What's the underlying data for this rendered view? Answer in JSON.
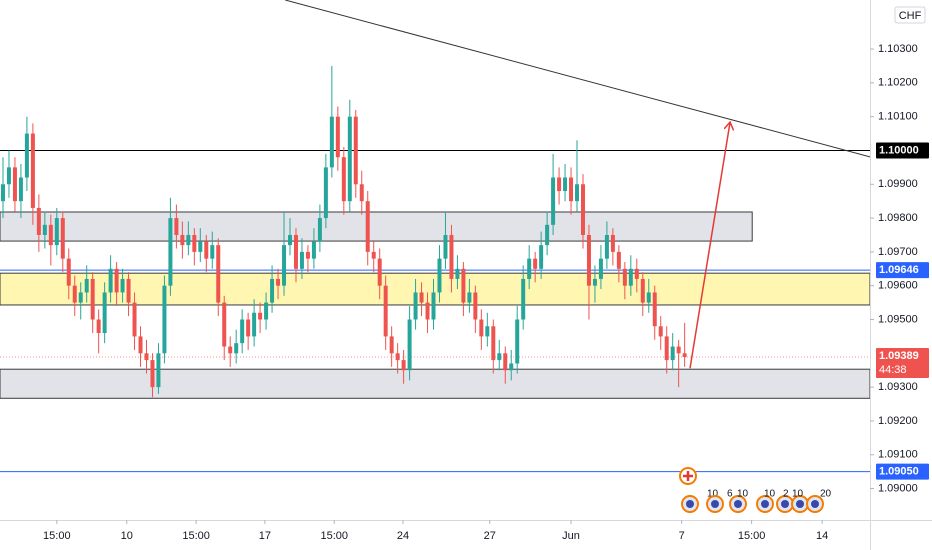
{
  "chart_data": {
    "type": "candlestick",
    "currency": "CHF",
    "colors": {
      "up": "#26a69a",
      "down": "#ef5350"
    },
    "xlim": [
      -0.5,
      145
    ],
    "ylim": [
      1.08907,
      1.10445
    ],
    "yticks": [
      {
        "value": 1.103,
        "label": "1.10300"
      },
      {
        "value": 1.102,
        "label": "1.10200"
      },
      {
        "value": 1.101,
        "label": "1.10100"
      },
      {
        "value": 1.099,
        "label": "1.09900"
      },
      {
        "value": 1.098,
        "label": "1.09800"
      },
      {
        "value": 1.097,
        "label": "1.09700"
      },
      {
        "value": 1.096,
        "label": "1.09600"
      },
      {
        "value": 1.095,
        "label": "1.09500"
      },
      {
        "value": 1.093,
        "label": "1.09300"
      },
      {
        "value": 1.092,
        "label": "1.09200"
      },
      {
        "value": 1.091,
        "label": "1.09100"
      },
      {
        "value": 1.09,
        "label": "1.09000"
      }
    ],
    "xticks": [
      {
        "value": 9,
        "label": "15:00"
      },
      {
        "value": 20.7,
        "label": "10"
      },
      {
        "value": 32.3,
        "label": "15:00"
      },
      {
        "value": 43.8,
        "label": "17"
      },
      {
        "value": 55.4,
        "label": "15:00"
      },
      {
        "value": 66.9,
        "label": "24"
      },
      {
        "value": 81.4,
        "label": "27"
      },
      {
        "value": 95,
        "label": "Jun"
      },
      {
        "value": 113.5,
        "label": "7"
      },
      {
        "value": 125.2,
        "label": "15:00"
      },
      {
        "value": 137,
        "label": "14"
      }
    ],
    "ohlc": [
      [
        1.0985,
        1.0998,
        1.098,
        1.099
      ],
      [
        1.099,
        1.1,
        1.0986,
        1.0995
      ],
      [
        1.0995,
        1.0998,
        1.0982,
        1.0985
      ],
      [
        1.0985,
        1.0996,
        1.098,
        1.0992
      ],
      [
        1.0992,
        1.101,
        1.0988,
        1.1005
      ],
      [
        1.1005,
        1.1008,
        1.0978,
        1.0983
      ],
      [
        1.0983,
        1.0987,
        1.097,
        1.0975
      ],
      [
        1.0975,
        1.0982,
        1.0971,
        1.0978
      ],
      [
        1.0978,
        1.0981,
        1.0966,
        1.0972
      ],
      [
        1.0972,
        1.0983,
        1.0969,
        1.098
      ],
      [
        1.098,
        1.0982,
        1.0964,
        1.0968
      ],
      [
        1.0968,
        1.0971,
        1.0956,
        1.096
      ],
      [
        1.096,
        1.0963,
        1.0951,
        1.0955
      ],
      [
        1.0955,
        1.0961,
        1.095,
        1.0958
      ],
      [
        1.0958,
        1.0966,
        1.0955,
        1.0962
      ],
      [
        1.0962,
        1.0964,
        1.0946,
        1.095
      ],
      [
        1.095,
        1.0953,
        1.094,
        1.0946
      ],
      [
        1.0946,
        1.0961,
        1.0943,
        1.0958
      ],
      [
        1.0958,
        1.0969,
        1.0955,
        1.0965
      ],
      [
        1.0965,
        1.0967,
        1.0954,
        1.0958
      ],
      [
        1.0958,
        1.0965,
        1.0955,
        1.0962
      ],
      [
        1.0962,
        1.0964,
        1.0951,
        1.0955
      ],
      [
        1.0955,
        1.0958,
        1.0941,
        1.0945
      ],
      [
        1.0945,
        1.0948,
        1.0936,
        1.094
      ],
      [
        1.094,
        1.0944,
        1.0934,
        1.0938
      ],
      [
        1.0938,
        1.094,
        1.0927,
        1.093
      ],
      [
        1.093,
        1.0943,
        1.0928,
        1.094
      ],
      [
        1.094,
        1.0963,
        1.0937,
        1.096
      ],
      [
        1.096,
        1.0986,
        1.0957,
        1.098
      ],
      [
        1.098,
        1.0984,
        1.0971,
        1.0975
      ],
      [
        1.0975,
        1.0979,
        1.0968,
        1.0972
      ],
      [
        1.0972,
        1.0979,
        1.0969,
        1.0975
      ],
      [
        1.0975,
        1.0977,
        1.0966,
        1.097
      ],
      [
        1.097,
        1.0977,
        1.0967,
        1.0973
      ],
      [
        1.0973,
        1.0975,
        1.0964,
        1.0968
      ],
      [
        1.0968,
        1.0976,
        1.0965,
        1.0972
      ],
      [
        1.0972,
        1.0974,
        1.0951,
        1.0955
      ],
      [
        1.0955,
        1.0957,
        1.0938,
        1.0942
      ],
      [
        1.0942,
        1.0945,
        1.0936,
        1.094
      ],
      [
        1.094,
        1.0947,
        1.0937,
        1.0943
      ],
      [
        1.0943,
        1.0953,
        1.094,
        1.095
      ],
      [
        1.095,
        1.0952,
        1.0941,
        1.0945
      ],
      [
        1.0945,
        1.0956,
        1.0942,
        1.0952
      ],
      [
        1.0952,
        1.0955,
        1.0946,
        1.095
      ],
      [
        1.095,
        1.0958,
        1.0947,
        1.0955
      ],
      [
        1.0955,
        1.0966,
        1.0952,
        1.0962
      ],
      [
        1.0962,
        1.0965,
        1.0956,
        1.096
      ],
      [
        1.096,
        1.0982,
        1.0957,
        1.0972
      ],
      [
        1.0972,
        1.098,
        1.0969,
        1.0975
      ],
      [
        1.0975,
        1.0977,
        1.0961,
        1.0965
      ],
      [
        1.0965,
        1.0974,
        1.0962,
        1.097
      ],
      [
        1.097,
        1.0972,
        1.0964,
        1.0968
      ],
      [
        1.0968,
        1.0977,
        1.0965,
        1.0973
      ],
      [
        1.0973,
        1.0984,
        1.097,
        1.098
      ],
      [
        1.098,
        1.0999,
        1.0977,
        1.0995
      ],
      [
        1.0995,
        1.1025,
        1.0992,
        1.101
      ],
      [
        1.101,
        1.1013,
        1.0994,
        1.0998
      ],
      [
        1.0998,
        1.1001,
        1.0981,
        1.0985
      ],
      [
        1.0985,
        1.1015,
        1.0982,
        1.101
      ],
      [
        1.101,
        1.1012,
        1.0986,
        1.099
      ],
      [
        1.099,
        1.0994,
        1.0981,
        1.0985
      ],
      [
        1.0985,
        1.0988,
        1.0966,
        1.097
      ],
      [
        1.097,
        1.0973,
        1.0964,
        1.0968
      ],
      [
        1.0968,
        1.0971,
        1.0956,
        1.096
      ],
      [
        1.096,
        1.0963,
        1.0941,
        1.0945
      ],
      [
        1.0945,
        1.0948,
        1.0936,
        1.094
      ],
      [
        1.094,
        1.0943,
        1.0934,
        1.0938
      ],
      [
        1.0938,
        1.0941,
        1.0931,
        1.0935
      ],
      [
        1.0935,
        1.0954,
        1.0932,
        1.095
      ],
      [
        1.095,
        1.0962,
        1.0947,
        1.0958
      ],
      [
        1.0958,
        1.0961,
        1.0951,
        1.0955
      ],
      [
        1.0955,
        1.0958,
        1.0946,
        1.095
      ],
      [
        1.095,
        1.0962,
        1.0947,
        1.0958
      ],
      [
        1.0958,
        1.0972,
        1.0955,
        1.0968
      ],
      [
        1.0968,
        1.0982,
        1.0965,
        1.0975
      ],
      [
        1.0975,
        1.0978,
        1.0958,
        1.0962
      ],
      [
        1.0962,
        1.0969,
        1.0959,
        1.0965
      ],
      [
        1.0965,
        1.0967,
        1.0951,
        1.0955
      ],
      [
        1.0955,
        1.0962,
        1.0952,
        1.0958
      ],
      [
        1.0958,
        1.096,
        1.0946,
        1.095
      ],
      [
        1.095,
        1.0953,
        1.0941,
        1.0945
      ],
      [
        1.0945,
        1.0952,
        1.0942,
        1.0948
      ],
      [
        1.0948,
        1.095,
        1.0934,
        1.0938
      ],
      [
        1.0938,
        1.0944,
        1.0935,
        1.094
      ],
      [
        1.094,
        1.0942,
        1.0931,
        1.0935
      ],
      [
        1.0935,
        1.0941,
        1.0932,
        1.0937
      ],
      [
        1.0937,
        1.0954,
        1.0934,
        1.095
      ],
      [
        1.095,
        1.0966,
        1.0947,
        1.0962
      ],
      [
        1.0962,
        1.0972,
        1.0959,
        1.0968
      ],
      [
        1.0968,
        1.097,
        1.0961,
        1.0965
      ],
      [
        1.0965,
        1.0976,
        1.0962,
        1.0972
      ],
      [
        1.0972,
        1.0982,
        1.0969,
        1.0978
      ],
      [
        1.0978,
        1.0999,
        1.0975,
        1.0992
      ],
      [
        1.0992,
        1.0995,
        1.0984,
        1.0988
      ],
      [
        1.0988,
        1.0996,
        1.0985,
        1.0992
      ],
      [
        1.0992,
        1.0995,
        1.0981,
        1.0985
      ],
      [
        1.0985,
        1.1003,
        1.0982,
        1.099
      ],
      [
        1.099,
        1.0993,
        1.0971,
        1.0975
      ],
      [
        1.0975,
        1.0978,
        1.095,
        1.096
      ],
      [
        1.096,
        1.0966,
        1.0955,
        1.0962
      ],
      [
        1.0962,
        1.0972,
        1.0959,
        1.0968
      ],
      [
        1.0968,
        1.0979,
        1.0965,
        1.0975
      ],
      [
        1.0975,
        1.0977,
        1.0966,
        1.097
      ],
      [
        1.097,
        1.0972,
        1.0961,
        1.0965
      ],
      [
        1.0965,
        1.0967,
        1.0956,
        1.096
      ],
      [
        1.096,
        1.0969,
        1.0957,
        1.0965
      ],
      [
        1.0965,
        1.0968,
        1.0958,
        1.0962
      ],
      [
        1.0962,
        1.0964,
        1.0951,
        1.0955
      ],
      [
        1.0955,
        1.0962,
        1.0952,
        1.0958
      ],
      [
        1.0958,
        1.096,
        1.0944,
        1.0948
      ],
      [
        1.0948,
        1.0951,
        1.0941,
        1.0945
      ],
      [
        1.0945,
        1.0948,
        1.0934,
        1.0938
      ],
      [
        1.0938,
        1.0946,
        1.0935,
        1.0942
      ],
      [
        1.0942,
        1.0944,
        1.093,
        1.094
      ],
      [
        1.094,
        1.0949,
        1.0936,
        1.09389
      ]
    ],
    "zones": [
      {
        "x": [
          -0.5,
          125.3
        ],
        "y": [
          1.09732,
          1.09818
        ],
        "color": "rgba(209,212,220,0.65)"
      },
      {
        "x": [
          -0.5,
          145
        ],
        "y": [
          1.09543,
          1.09637
        ],
        "color": "rgba(255,235,59,0.4)"
      },
      {
        "x": [
          -0.5,
          145
        ],
        "y": [
          1.09267,
          1.09353
        ],
        "color": "rgba(209,212,220,0.65)"
      }
    ],
    "trend_line": {
      "x": [
        47.2,
        145
      ],
      "y": [
        1.10445,
        1.09981
      ],
      "color": "#333333"
    },
    "arrow": {
      "x": [
        114.9,
        121.6
      ],
      "y": [
        1.09356,
        1.10084
      ],
      "color": "#e53935"
    },
    "levels": [
      {
        "value": 1.1,
        "label": "1.10000",
        "color": "#000000"
      },
      {
        "value": 1.09646,
        "label": "1.09646",
        "color": "#2962ff"
      },
      {
        "value": 1.0905,
        "label": "1.09050",
        "color": "#2962ff"
      }
    ],
    "last_price": {
      "value": 1.09389,
      "label": "1.09389",
      "countdown": "44:38",
      "color": "#ef5350"
    },
    "events": [
      "10",
      "6",
      "10",
      "10",
      "2",
      "10",
      "20"
    ]
  }
}
